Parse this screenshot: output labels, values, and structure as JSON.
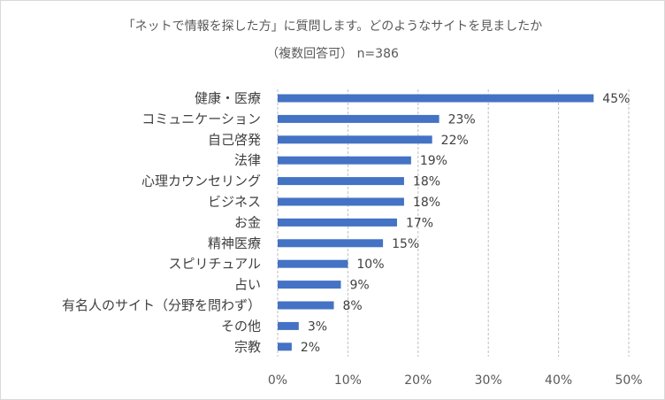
{
  "chart_data": {
    "type": "bar",
    "orientation": "horizontal",
    "title": "「ネットで情報を探した方」に質問します。どのようなサイトを見ましたか",
    "subtitle": "（複数回答可）",
    "subtitle_note": "n=386",
    "categories": [
      "健康・医療",
      "コミュニケーション",
      "自己啓発",
      "法律",
      "心理カウンセリング",
      "ビジネス",
      "お金",
      "精神医療",
      "スピリチュアル",
      "占い",
      "有名人のサイト（分野を問わず）",
      "その他",
      "宗教"
    ],
    "values": [
      45,
      23,
      22,
      19,
      18,
      18,
      17,
      15,
      10,
      9,
      8,
      3,
      2
    ],
    "value_labels": [
      "45%",
      "23%",
      "22%",
      "19%",
      "18%",
      "18%",
      "17%",
      "15%",
      "10%",
      "9%",
      "8%",
      "3%",
      "2%"
    ],
    "xlim": [
      0,
      50
    ],
    "xticks": [
      "0%",
      "10%",
      "20%",
      "30%",
      "40%",
      "50%"
    ],
    "grid": true,
    "bar_color": "#4472c4"
  }
}
